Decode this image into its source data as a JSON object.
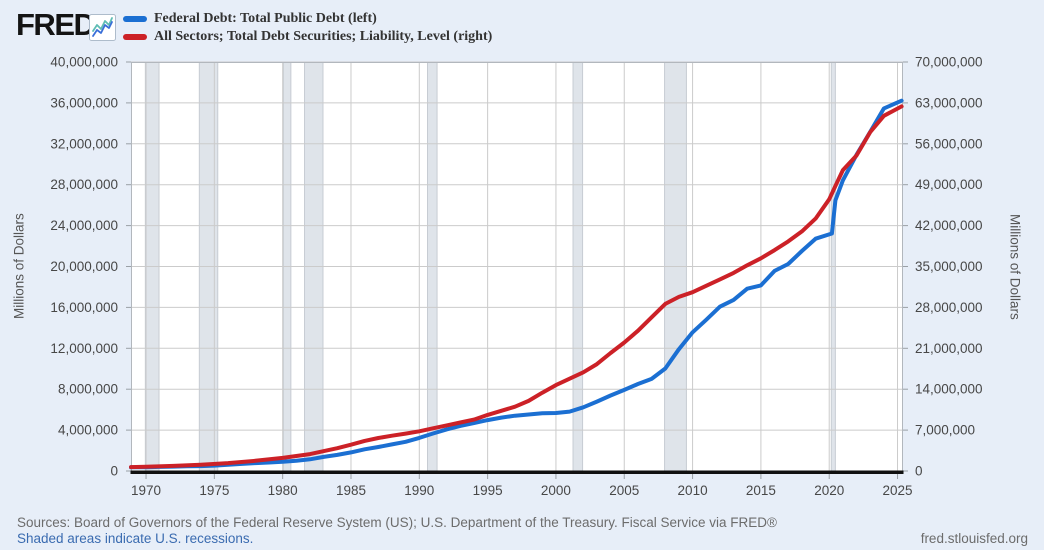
{
  "header": {
    "logo_text": "FRED",
    "registered_mark": "®"
  },
  "legend": {
    "items": [
      {
        "label": "Federal Debt: Total Public Debt (left)",
        "color": "#1b6fd2"
      },
      {
        "label": "All Sectors; Total Debt Securities; Liability, Level (right)",
        "color": "#cc2127"
      }
    ]
  },
  "footer": {
    "sources": "Sources: Board of Governors of the Federal Reserve System (US); U.S. Department of the Treasury. Fiscal Service via FRED®",
    "recession_note": "Shaded areas indicate U.S. recessions.",
    "site": "fred.stlouisfed.org"
  },
  "chart_data": {
    "type": "line",
    "x_range": [
      1968.9,
      2025.4
    ],
    "x_ticks": [
      1970,
      1975,
      1980,
      1985,
      1990,
      1995,
      2000,
      2005,
      2010,
      2015,
      2020,
      2025
    ],
    "x_tick_labels": [
      "1970",
      "1975",
      "1980",
      "1985",
      "1990",
      "1995",
      "2000",
      "2005",
      "2010",
      "2015",
      "2020",
      "2025"
    ],
    "grid": true,
    "left_axis": {
      "title": "Millions of Dollars",
      "min": 0,
      "max": 40000000,
      "tick_step": 4000000,
      "tick_labels": [
        "0",
        "4,000,000",
        "8,000,000",
        "12,000,000",
        "16,000,000",
        "20,000,000",
        "24,000,000",
        "28,000,000",
        "32,000,000",
        "36,000,000",
        "40,000,000"
      ]
    },
    "right_axis": {
      "title": "Millions of Dollars",
      "min": 0,
      "max": 70000000,
      "tick_step": 7000000,
      "tick_labels": [
        "0",
        "7,000,000",
        "14,000,000",
        "21,000,000",
        "28,000,000",
        "35,000,000",
        "42,000,000",
        "49,000,000",
        "56,000,000",
        "63,000,000",
        "70,000,000"
      ]
    },
    "recessions": [
      [
        1969.95,
        1970.95
      ],
      [
        1973.9,
        1975.25
      ],
      [
        1980.05,
        1980.6
      ],
      [
        1981.6,
        1982.95
      ],
      [
        1990.6,
        1991.3
      ],
      [
        2001.25,
        2001.95
      ],
      [
        2007.95,
        2009.55
      ],
      [
        2020.15,
        2020.45
      ]
    ],
    "series": [
      {
        "id": "federal-debt-line",
        "name": "Federal Debt: Total Public Debt",
        "axis": "left",
        "color": "#1b6fd2",
        "points": [
          [
            1968.9,
            360000
          ],
          [
            1970,
            372000
          ],
          [
            1971,
            398000
          ],
          [
            1972,
            427000
          ],
          [
            1973,
            458000
          ],
          [
            1974,
            475000
          ],
          [
            1975,
            533000
          ],
          [
            1976,
            620000
          ],
          [
            1977,
            699000
          ],
          [
            1978,
            772000
          ],
          [
            1979,
            827000
          ],
          [
            1980,
            908000
          ],
          [
            1981,
            998000
          ],
          [
            1982,
            1142000
          ],
          [
            1983,
            1377000
          ],
          [
            1984,
            1572000
          ],
          [
            1985,
            1823000
          ],
          [
            1986,
            2125000
          ],
          [
            1987,
            2350000
          ],
          [
            1988,
            2602000
          ],
          [
            1989,
            2857000
          ],
          [
            1990,
            3233000
          ],
          [
            1991,
            3665000
          ],
          [
            1992,
            4065000
          ],
          [
            1993,
            4411000
          ],
          [
            1994,
            4693000
          ],
          [
            1995,
            4974000
          ],
          [
            1996,
            5225000
          ],
          [
            1997,
            5413000
          ],
          [
            1998,
            5526000
          ],
          [
            1999,
            5656000
          ],
          [
            2000,
            5674000
          ],
          [
            2001,
            5807000
          ],
          [
            2002,
            6228000
          ],
          [
            2003,
            6783000
          ],
          [
            2004,
            7379000
          ],
          [
            2005,
            7933000
          ],
          [
            2006,
            8507000
          ],
          [
            2007,
            9008000
          ],
          [
            2008,
            10025000
          ],
          [
            2009,
            11910000
          ],
          [
            2010,
            13562000
          ],
          [
            2011,
            14790000
          ],
          [
            2012,
            16066000
          ],
          [
            2013,
            16738000
          ],
          [
            2014,
            17824000
          ],
          [
            2015,
            18151000
          ],
          [
            2016,
            19573000
          ],
          [
            2017,
            20245000
          ],
          [
            2018,
            21516000
          ],
          [
            2019,
            22719000
          ],
          [
            2020.2,
            23224000
          ],
          [
            2020.45,
            26477000
          ],
          [
            2021,
            28429000
          ],
          [
            2022,
            30929000
          ],
          [
            2023,
            33167000
          ],
          [
            2024,
            35460000
          ],
          [
            2025.3,
            36220000
          ]
        ]
      },
      {
        "id": "debt-securities-line",
        "name": "All Sectors; Total Debt Securities; Liability, Level",
        "axis": "right",
        "color": "#cc2127",
        "points": [
          [
            1968.9,
            660000
          ],
          [
            1970,
            740000
          ],
          [
            1972,
            870000
          ],
          [
            1974,
            1070000
          ],
          [
            1976,
            1350000
          ],
          [
            1978,
            1750000
          ],
          [
            1980,
            2250000
          ],
          [
            1982,
            2900000
          ],
          [
            1984,
            3900000
          ],
          [
            1985,
            4500000
          ],
          [
            1986,
            5150000
          ],
          [
            1987,
            5650000
          ],
          [
            1988,
            6050000
          ],
          [
            1989,
            6400000
          ],
          [
            1990,
            6800000
          ],
          [
            1991,
            7300000
          ],
          [
            1992,
            7800000
          ],
          [
            1993,
            8300000
          ],
          [
            1994,
            8800000
          ],
          [
            1995,
            9600000
          ],
          [
            1996,
            10300000
          ],
          [
            1997,
            11000000
          ],
          [
            1998,
            12000000
          ],
          [
            1999,
            13400000
          ],
          [
            2000,
            14700000
          ],
          [
            2001,
            15800000
          ],
          [
            2002,
            16900000
          ],
          [
            2003,
            18300000
          ],
          [
            2004,
            20200000
          ],
          [
            2005,
            22000000
          ],
          [
            2006,
            24000000
          ],
          [
            2007,
            26300000
          ],
          [
            2008,
            28600000
          ],
          [
            2009,
            29800000
          ],
          [
            2010,
            30600000
          ],
          [
            2011,
            31700000
          ],
          [
            2012,
            32800000
          ],
          [
            2013,
            33900000
          ],
          [
            2014,
            35200000
          ],
          [
            2015,
            36400000
          ],
          [
            2016,
            37800000
          ],
          [
            2017,
            39300000
          ],
          [
            2018,
            41000000
          ],
          [
            2019,
            43200000
          ],
          [
            2020,
            46500000
          ],
          [
            2020.5,
            49000000
          ],
          [
            2021,
            51500000
          ],
          [
            2022,
            54000000
          ],
          [
            2023,
            58000000
          ],
          [
            2024,
            60800000
          ],
          [
            2025.3,
            62400000
          ]
        ]
      }
    ],
    "style": {
      "page_bg": "#e7eef8",
      "plot_bg": "#ffffff",
      "grid_color": "#cbcbcb",
      "border_color": "#b2b7bd",
      "axis_line_color": "#111111",
      "tick_mark_color": "#9aa0a6",
      "tick_label_color": "#474747",
      "recession_fill": "#dfe4ea",
      "recession_edge": "#c7ccd3",
      "line_width": 4
    }
  }
}
